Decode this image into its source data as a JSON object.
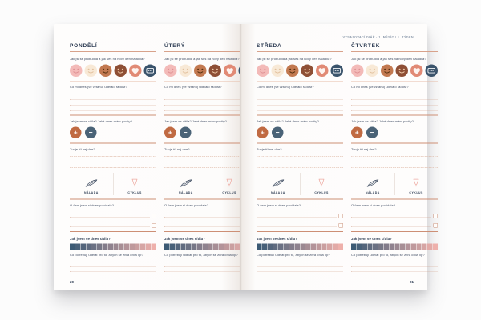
{
  "header": {
    "meta_right": "VYSAZOVACÍ DIÁŘ · 1. MĚSÍC / 1. TÝDEN"
  },
  "days": [
    {
      "name": "PONDĚLÍ"
    },
    {
      "name": "ÚTERÝ"
    },
    {
      "name": "STŘEDA"
    },
    {
      "name": "ČTVRTEK"
    }
  ],
  "questions": {
    "wake": "Jak jsi se probudila a jak ses na nový den naladila?",
    "joy": "Co mi dnes (ve vztahu) udělalo radost?",
    "feel": "Jak jsem se cítila? Jaké dnes mám pocity?",
    "top_three": "Tvoje tři nej dne?",
    "talk": "O čem jsem si dnes povídala?",
    "scale": "Jak jsem se dnes cítila?",
    "tomorrow": "Co potřebuji udělat pro to, abych se zítra cítila líp?"
  },
  "icon_labels": {
    "mood": "NÁLADA",
    "cycle": "CYKLUS"
  },
  "mood_icons": [
    {
      "name": "mood-face-blush-icon",
      "type": "face",
      "bg": "#f3bab8",
      "fg": "#de9093"
    },
    {
      "name": "mood-face-cream-icon",
      "type": "face",
      "bg": "#f8e9d6",
      "fg": "#e2c19e"
    },
    {
      "name": "mood-face-terracotta-icon",
      "type": "face",
      "bg": "#c27950",
      "fg": "#54300f"
    },
    {
      "name": "mood-face-brown-icon",
      "type": "face",
      "bg": "#8e4f35",
      "fg": "#efcaa9"
    },
    {
      "name": "heart-icon",
      "type": "heart",
      "bg": "#e18a75",
      "fg": "#fdf3ef"
    },
    {
      "name": "pill-pack-icon",
      "type": "pill",
      "bg": "#3a536b",
      "fg": "#f4f6f8"
    }
  ],
  "plus_minus": {
    "plus": "+",
    "minus": "−",
    "plus_color": "#c06a42",
    "minus_color": "#4a6377"
  },
  "scale_bar": {
    "segments": 16,
    "from": "#3c5a74",
    "to": "#eeb0ab"
  },
  "answer_lines": {
    "joy_lines": 4,
    "top_three_lines": 3,
    "talk_checkbox_lines": 2,
    "tomorrow_lines": 3
  },
  "pages": {
    "left_number": "20",
    "right_number": "21"
  }
}
